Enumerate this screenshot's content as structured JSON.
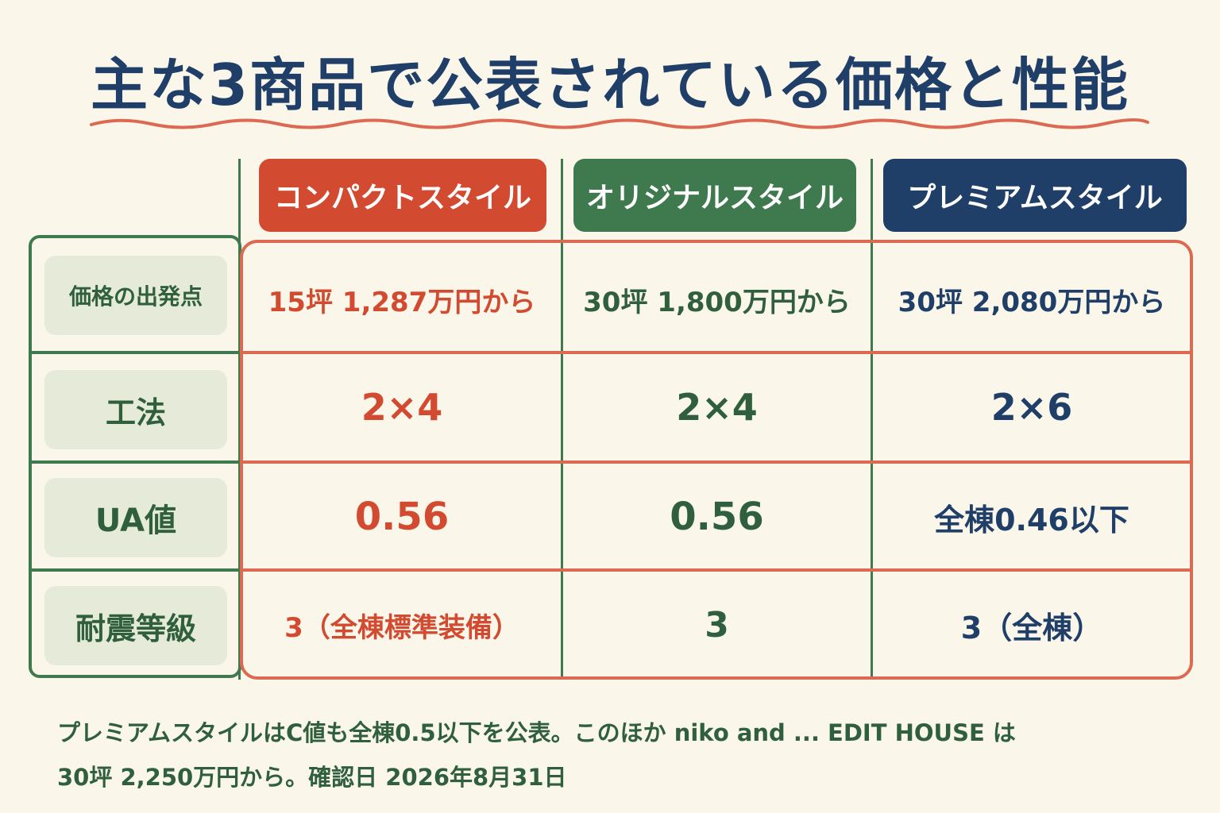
{
  "title": "主な3商品で公表されている価格と性能",
  "columns": [
    {
      "label": "コンパクトスタイル",
      "color": "#d24a30"
    },
    {
      "label": "オリジナルスタイル",
      "color": "#3f7a4e"
    },
    {
      "label": "プレミアムスタイル",
      "color": "#203f68"
    }
  ],
  "rows": [
    {
      "label": "価格の出発点",
      "values": [
        "15坪 1,287万円から",
        "30坪 1,800万円から",
        "30坪 2,080万円から"
      ]
    },
    {
      "label": "工法",
      "values": [
        "2×4",
        "2×4",
        "2×6"
      ]
    },
    {
      "label": "UA値",
      "values": [
        "0.56",
        "0.56",
        "全棟0.46以下"
      ]
    },
    {
      "label": "耐震等級",
      "values": [
        "3（全棟標準装備）",
        "3",
        "3（全棟）"
      ]
    }
  ],
  "note": {
    "line1": "プレミアムスタイルはC値も全棟0.5以下を公表。このほか niko and ... EDIT HOUSE は",
    "line2": "30坪 2,250万円から。確認日 2026年8月31日"
  }
}
